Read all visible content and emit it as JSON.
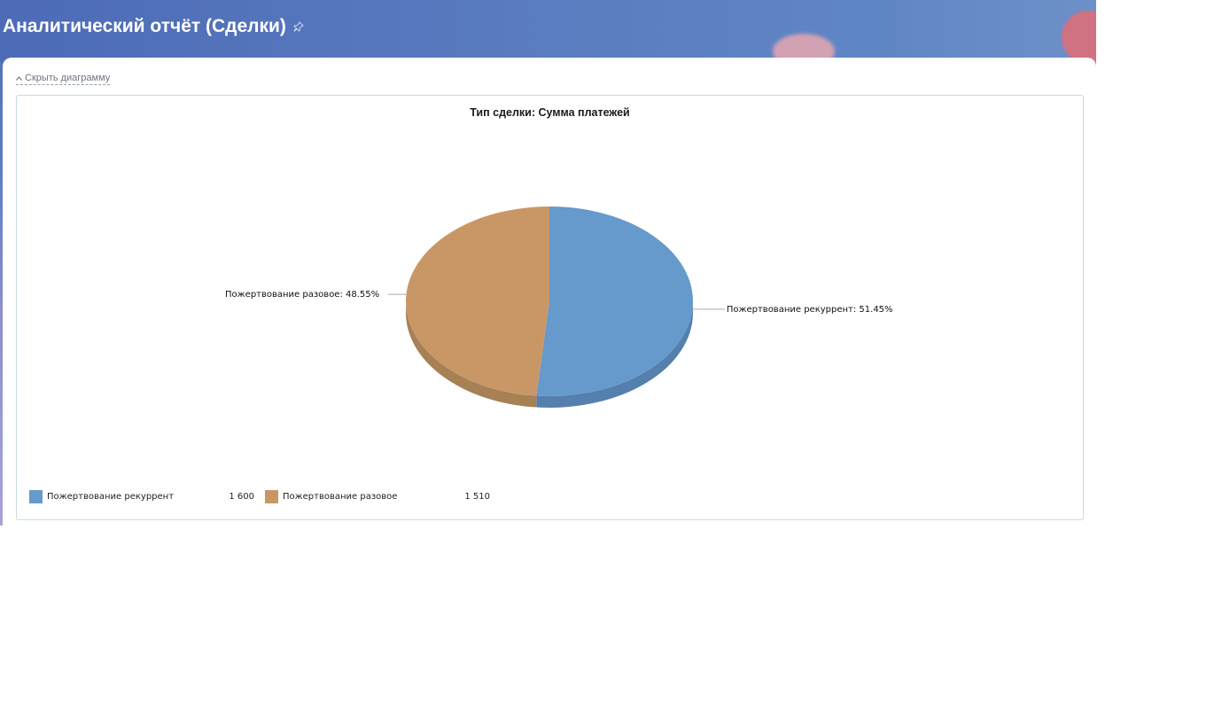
{
  "header": {
    "title": "Аналитический отчёт (Сделки)"
  },
  "panel": {
    "toggle_label": "Скрыть диаграмму"
  },
  "colors": {
    "series_1": "#6699cc",
    "series_1_side": "#5580ad",
    "series_2": "#c99766",
    "series_2_side": "#a88056"
  },
  "chart_data": {
    "type": "pie",
    "title": "Тип сделки: Сумма платежей",
    "slices": [
      {
        "label": "Пожертвование рекуррент",
        "value": 1600,
        "value_text": "1 600",
        "percent": 51.45,
        "callout": "Пожертвование рекуррент: 51.45%",
        "color": "#6699cc"
      },
      {
        "label": "Пожертвование разовое",
        "value": 1510,
        "value_text": "1 510",
        "percent": 48.55,
        "callout": "Пожертвование разовое: 48.55%",
        "color": "#c99766"
      }
    ],
    "legend_position": "bottom-left"
  }
}
